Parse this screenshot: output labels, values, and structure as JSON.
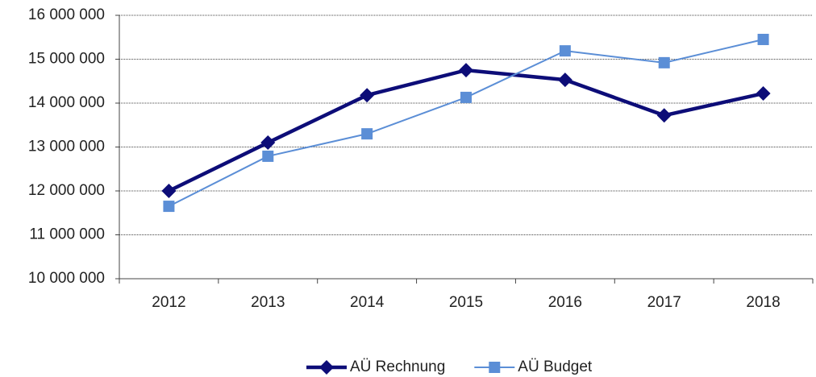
{
  "chart_data": {
    "type": "line",
    "categories": [
      "2012",
      "2013",
      "2014",
      "2015",
      "2016",
      "2017",
      "2018"
    ],
    "series": [
      {
        "name": "AÜ Rechnung",
        "color": "#0d0d78",
        "marker": "diamond",
        "values": [
          12000000,
          13100000,
          14180000,
          14750000,
          14530000,
          13720000,
          14220000
        ]
      },
      {
        "name": "AÜ Budget",
        "color": "#5b8ed6",
        "marker": "square",
        "values": [
          11650000,
          12790000,
          13300000,
          14130000,
          15190000,
          14920000,
          15450000
        ]
      }
    ],
    "ylim": [
      10000000,
      16000000
    ],
    "yticks": [
      {
        "value": 10000000,
        "label": "10 000 000"
      },
      {
        "value": 11000000,
        "label": "11 000 000"
      },
      {
        "value": 12000000,
        "label": "12 000 000"
      },
      {
        "value": 13000000,
        "label": "13 000 000"
      },
      {
        "value": 14000000,
        "label": "14 000 000"
      },
      {
        "value": 15000000,
        "label": "15 000 000"
      },
      {
        "value": 16000000,
        "label": "16 000 000"
      }
    ],
    "grid": true,
    "legend": "bottom"
  }
}
